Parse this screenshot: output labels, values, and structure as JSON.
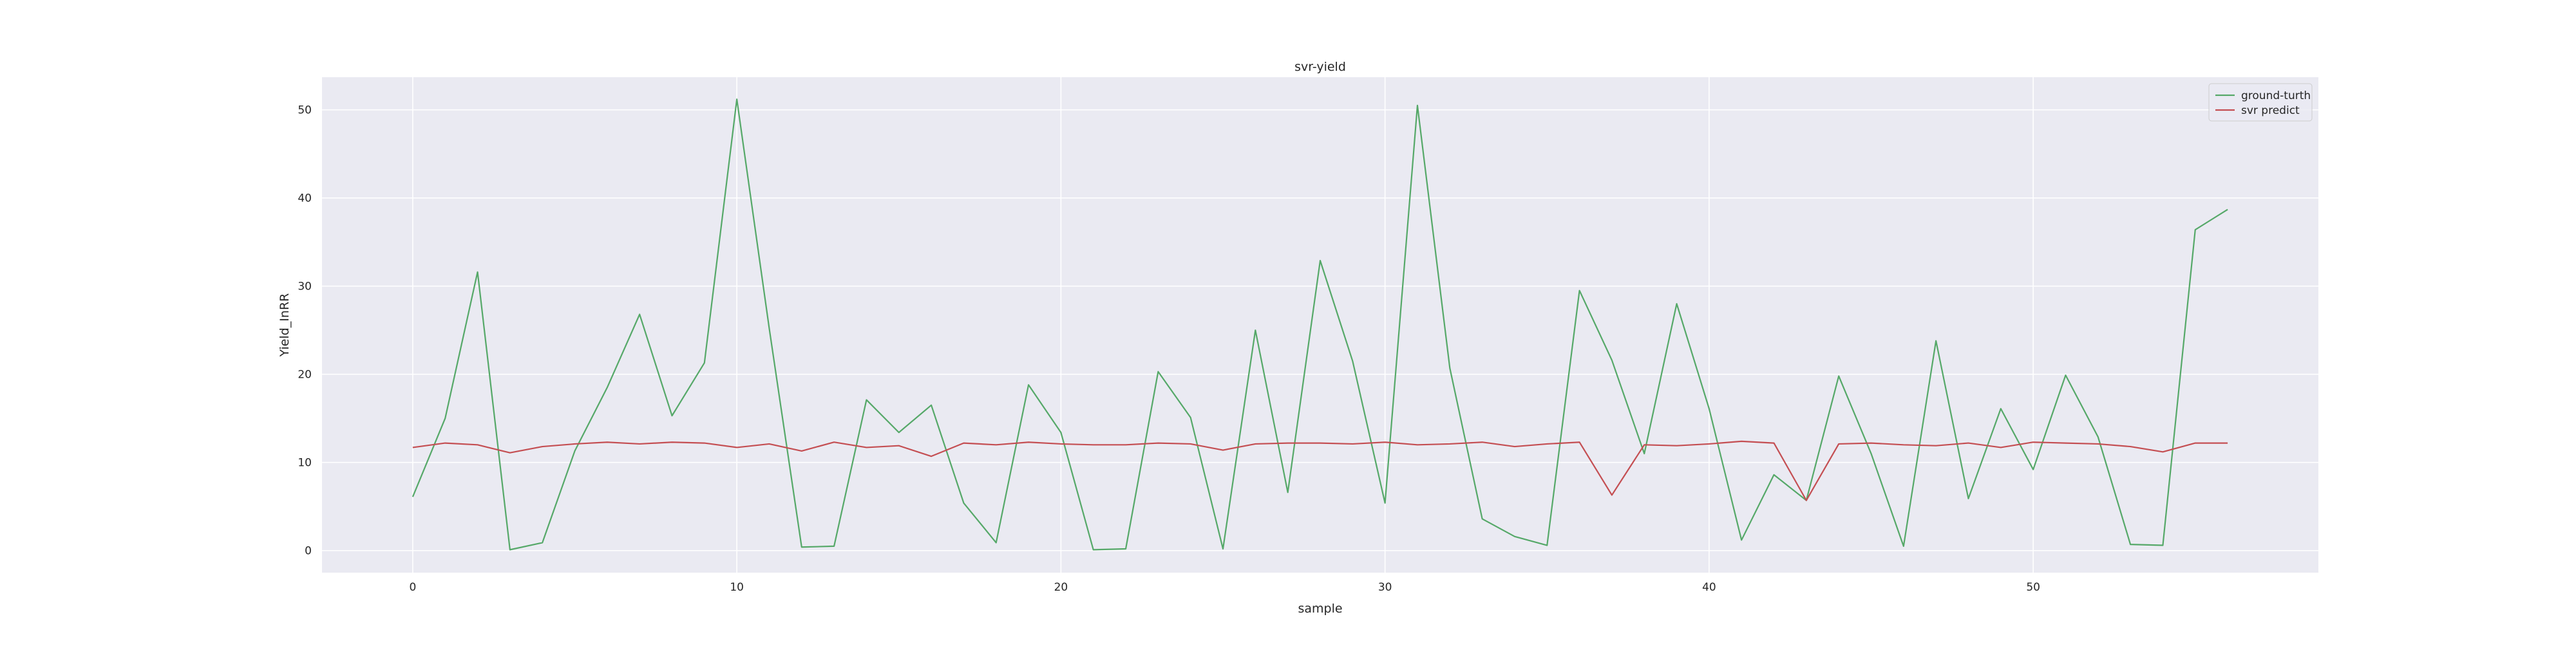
{
  "chart_data": {
    "type": "line",
    "title": "svr-yield",
    "xlabel": "sample",
    "ylabel": "Yield_InRR",
    "xlim": [
      -2.8,
      58.8
    ],
    "ylim": [
      -2.5,
      53.7
    ],
    "xticks": [
      0,
      10,
      20,
      30,
      40,
      50
    ],
    "yticks": [
      0,
      10,
      20,
      30,
      40,
      50
    ],
    "grid": true,
    "legend_position": "top-right",
    "background": "#eaeaf2",
    "series": [
      {
        "name": "ground-turth",
        "color": "#55a868",
        "x": [
          0,
          1,
          2,
          3,
          4,
          5,
          6,
          7,
          8,
          9,
          10,
          11,
          12,
          13,
          14,
          15,
          16,
          17,
          18,
          19,
          20,
          21,
          22,
          23,
          24,
          25,
          26,
          27,
          28,
          29,
          30,
          31,
          32,
          33,
          34,
          35,
          36,
          37,
          38,
          39,
          40,
          41,
          42,
          43,
          44,
          45,
          46,
          47,
          48,
          49,
          50,
          51,
          52,
          53,
          54,
          55,
          56
        ],
        "values": [
          6.1,
          15.0,
          31.6,
          0.1,
          0.9,
          11.3,
          18.5,
          26.8,
          15.3,
          21.3,
          51.2,
          25.2,
          0.4,
          0.5,
          17.1,
          13.4,
          16.5,
          5.4,
          0.9,
          18.8,
          13.4,
          0.1,
          0.2,
          20.3,
          15.1,
          0.2,
          25.0,
          6.6,
          32.9,
          21.5,
          5.4,
          50.5,
          20.7,
          3.6,
          1.6,
          0.6,
          29.5,
          21.6,
          11.0,
          28.0,
          16.1,
          1.2,
          8.6,
          5.7,
          19.8,
          11.0,
          0.5,
          23.8,
          5.9,
          16.1,
          9.2,
          19.9,
          12.9,
          0.7,
          0.6,
          36.4,
          38.7
        ]
      },
      {
        "name": "svr predict",
        "color": "#c44e52",
        "x": [
          0,
          1,
          2,
          3,
          4,
          5,
          6,
          7,
          8,
          9,
          10,
          11,
          12,
          13,
          14,
          15,
          16,
          17,
          18,
          19,
          20,
          21,
          22,
          23,
          24,
          25,
          26,
          27,
          28,
          29,
          30,
          31,
          32,
          33,
          34,
          35,
          36,
          37,
          38,
          39,
          40,
          41,
          42,
          43,
          44,
          45,
          46,
          47,
          48,
          49,
          50,
          51,
          52,
          53,
          54,
          55,
          56
        ],
        "values": [
          11.7,
          12.2,
          12.0,
          11.1,
          11.8,
          12.1,
          12.3,
          12.1,
          12.3,
          12.2,
          11.7,
          12.1,
          11.3,
          12.3,
          11.7,
          11.9,
          10.7,
          12.2,
          12.0,
          12.3,
          12.1,
          12.0,
          12.0,
          12.2,
          12.1,
          11.4,
          12.1,
          12.2,
          12.2,
          12.1,
          12.3,
          12.0,
          12.1,
          12.3,
          11.8,
          12.1,
          12.3,
          6.3,
          12.0,
          11.9,
          12.1,
          12.4,
          12.2,
          5.7,
          12.1,
          12.2,
          12.0,
          11.9,
          12.2,
          11.7,
          12.3,
          12.2,
          12.1,
          11.8,
          11.2,
          12.2,
          12.2
        ]
      }
    ]
  }
}
